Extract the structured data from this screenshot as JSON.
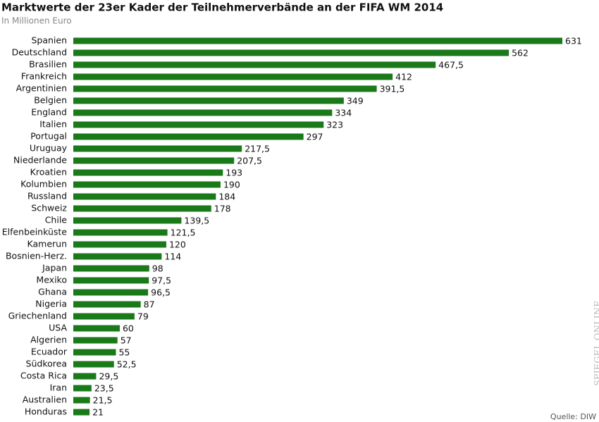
{
  "chart_data": {
    "type": "hbar",
    "title": "Marktwerte der 23er Kader der Teilnehmerverbände an der FIFA WM 2014",
    "subtitle": "In Millionen Euro",
    "source": "Quelle: DIW",
    "watermark": "SPIEGEL ONLINE",
    "color": "#1a7a1a",
    "categories": [
      "Spanien",
      "Deutschland",
      "Brasilien",
      "Frankreich",
      "Argentinien",
      "Belgien",
      "England",
      "Italien",
      "Portugal",
      "Uruguay",
      "Niederlande",
      "Kroatien",
      "Kolumbien",
      "Russland",
      "Schweiz",
      "Chile",
      "Elfenbeinküste",
      "Kamerun",
      "Bosnien-Herz.",
      "Japan",
      "Mexiko",
      "Ghana",
      "Nigeria",
      "Griechenland",
      "USA",
      "Algerien",
      "Ecuador",
      "Südkorea",
      "Costa Rica",
      "Iran",
      "Australien",
      "Honduras"
    ],
    "values": [
      631,
      562,
      467.5,
      412,
      391.5,
      349,
      334,
      323,
      297,
      217.5,
      207.5,
      193,
      190,
      184,
      178,
      139.5,
      121.5,
      120,
      114,
      98,
      97.5,
      96.5,
      87,
      79,
      60,
      57,
      55,
      52.5,
      29.5,
      23.5,
      21.5,
      21
    ],
    "value_labels": [
      "631",
      "562",
      "467,5",
      "412",
      "391,5",
      "349",
      "334",
      "323",
      "297",
      "217,5",
      "207,5",
      "193",
      "190",
      "184",
      "178",
      "139,5",
      "121,5",
      "120",
      "114",
      "98",
      "97,5",
      "96,5",
      "87",
      "79",
      "60",
      "57",
      "55",
      "52,5",
      "29,5",
      "23,5",
      "21,5",
      "21"
    ]
  }
}
